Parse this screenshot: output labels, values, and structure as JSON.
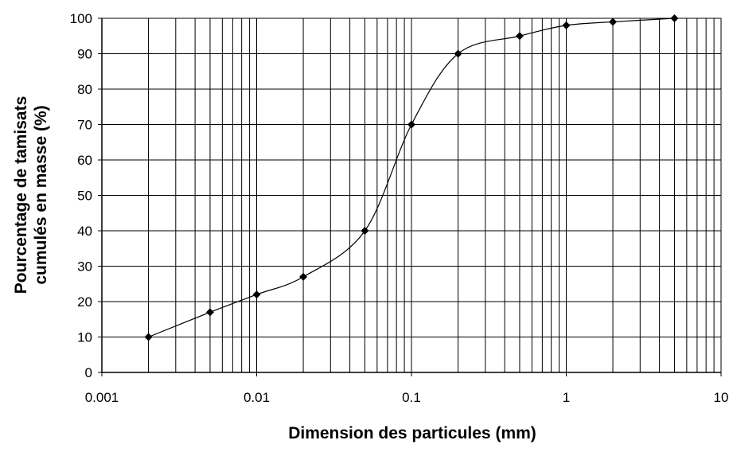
{
  "chart_data": {
    "type": "scatter",
    "x_scale": "log",
    "xlabel": "Dimension des particules (mm)",
    "ylabel_lines": [
      "Pourcentage de tamisats",
      "cumulés en masse (%)"
    ],
    "xlim": [
      0.001,
      10
    ],
    "ylim": [
      0,
      100
    ],
    "x_tick_labels": [
      "0.001",
      "0.01",
      "0.1",
      "1",
      "10"
    ],
    "y_tick_labels": [
      "0",
      "10",
      "20",
      "30",
      "40",
      "50",
      "60",
      "70",
      "80",
      "90",
      "100"
    ],
    "grid": true,
    "marker": "diamond",
    "line": "smooth",
    "series": [
      {
        "points": [
          {
            "x": 0.002,
            "y": 10
          },
          {
            "x": 0.005,
            "y": 17
          },
          {
            "x": 0.01,
            "y": 22
          },
          {
            "x": 0.02,
            "y": 27
          },
          {
            "x": 0.05,
            "y": 40
          },
          {
            "x": 0.1,
            "y": 70
          },
          {
            "x": 0.2,
            "y": 90
          },
          {
            "x": 0.5,
            "y": 95
          },
          {
            "x": 1,
            "y": 98
          },
          {
            "x": 2,
            "y": 99
          },
          {
            "x": 5,
            "y": 100
          }
        ]
      }
    ],
    "colors": {
      "line": "#000000",
      "grid": "#000000",
      "marker": "#000000"
    }
  }
}
